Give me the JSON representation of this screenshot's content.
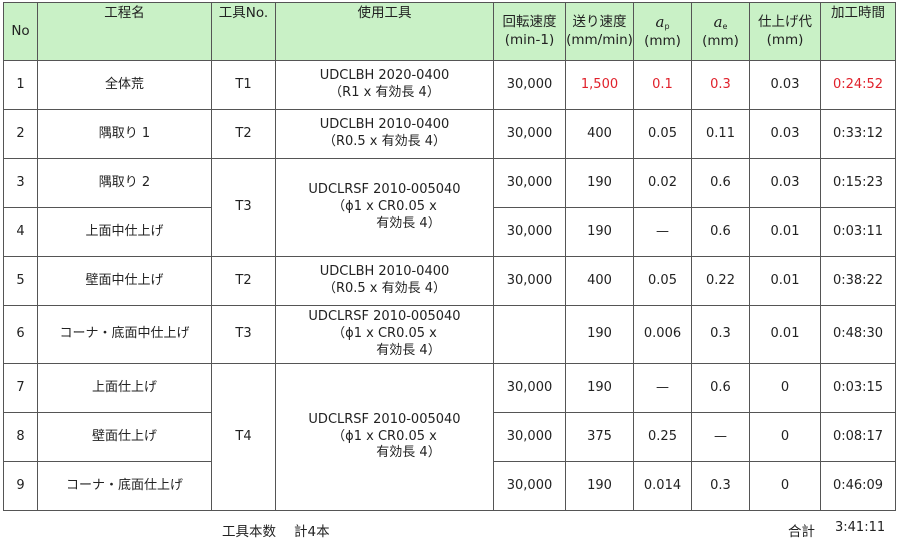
{
  "header": {
    "no": "No",
    "process_name": "工程名",
    "tool_no": "工具No.",
    "tool_used": "使用工具",
    "spindle_speed": "回転速度",
    "spindle_speed_unit": "(min-1)",
    "feed_rate": "送り速度",
    "feed_rate_unit": "(mm/min)",
    "ap_symbol": "a",
    "ap_sub": "p",
    "ap_unit": "(mm)",
    "ae_symbol": "a",
    "ae_sub": "e",
    "ae_unit": "(mm)",
    "finish_allowance": "仕上げ代",
    "finish_allowance_unit": "(mm)",
    "machining_time": "加工時間"
  },
  "tools": {
    "t1": {
      "no": "T1",
      "line1": "UDCLBH 2020-0400",
      "line2": "（R1 x 有効長 4）"
    },
    "t2": {
      "no": "T2",
      "line1": "UDCLBH 2010-0400",
      "line2": "（R0.5 x 有効長 4）"
    },
    "t3": {
      "no": "T3",
      "line1": "UDCLRSF 2010-005040",
      "line2": "（ϕ1 x CR0.05 x",
      "line3": "有効長 4）"
    },
    "t2b": {
      "no": "T2",
      "line1": "UDCLBH 2010-0400",
      "line2": "（R0.5 x 有効長 4）"
    },
    "t3b": {
      "no": "T3",
      "line1": "UDCLRSF 2010-005040",
      "line2": "（ϕ1 x CR0.05 x",
      "line3": "有効長 4）"
    },
    "t4": {
      "no": "T4",
      "line1": "UDCLRSF 2010-005040",
      "line2": "（ϕ1 x CR0.05 x",
      "line3": "有効長 4）"
    }
  },
  "rows": [
    {
      "no": "1",
      "name": "全体荒",
      "speed": "30,000",
      "feed": "1,500",
      "ap": "0.1",
      "ae": "0.3",
      "allowance": "0.03",
      "time": "0:24:52"
    },
    {
      "no": "2",
      "name": "隅取り 1",
      "speed": "30,000",
      "feed": "400",
      "ap": "0.05",
      "ae": "0.11",
      "allowance": "0.03",
      "time": "0:33:12"
    },
    {
      "no": "3",
      "name": "隅取り 2",
      "speed": "30,000",
      "feed": "190",
      "ap": "0.02",
      "ae": "0.6",
      "allowance": "0.03",
      "time": "0:15:23"
    },
    {
      "no": "4",
      "name": "上面中仕上げ",
      "speed": "30,000",
      "feed": "190",
      "ap": "—",
      "ae": "0.6",
      "allowance": "0.01",
      "time": "0:03:11"
    },
    {
      "no": "5",
      "name": "壁面中仕上げ",
      "speed": "30,000",
      "feed": "400",
      "ap": "0.05",
      "ae": "0.22",
      "allowance": "0.01",
      "time": "0:38:22"
    },
    {
      "no": "6",
      "name": "コーナ・底面中仕上げ",
      "speed": "",
      "feed": "190",
      "ap": "0.006",
      "ae": "0.3",
      "allowance": "0.01",
      "time": "0:48:30"
    },
    {
      "no": "7",
      "name": "上面仕上げ",
      "speed": "30,000",
      "feed": "190",
      "ap": "—",
      "ae": "0.6",
      "allowance": "0",
      "time": "0:03:15"
    },
    {
      "no": "8",
      "name": "壁面仕上げ",
      "speed": "30,000",
      "feed": "375",
      "ap": "0.25",
      "ae": "—",
      "allowance": "0",
      "time": "0:08:17"
    },
    {
      "no": "9",
      "name": "コーナ・底面仕上げ",
      "speed": "30,000",
      "feed": "190",
      "ap": "0.014",
      "ae": "0.3",
      "allowance": "0",
      "time": "0:46:09"
    }
  ],
  "footer": {
    "tool_count_label": "工具本数",
    "tool_count_value": "計4本",
    "total_label": "合計",
    "total_value": "3:41:11"
  },
  "colors": {
    "header_bg": "#c9f1c6",
    "highlight_red": "#e0212b",
    "border": "#555555"
  }
}
